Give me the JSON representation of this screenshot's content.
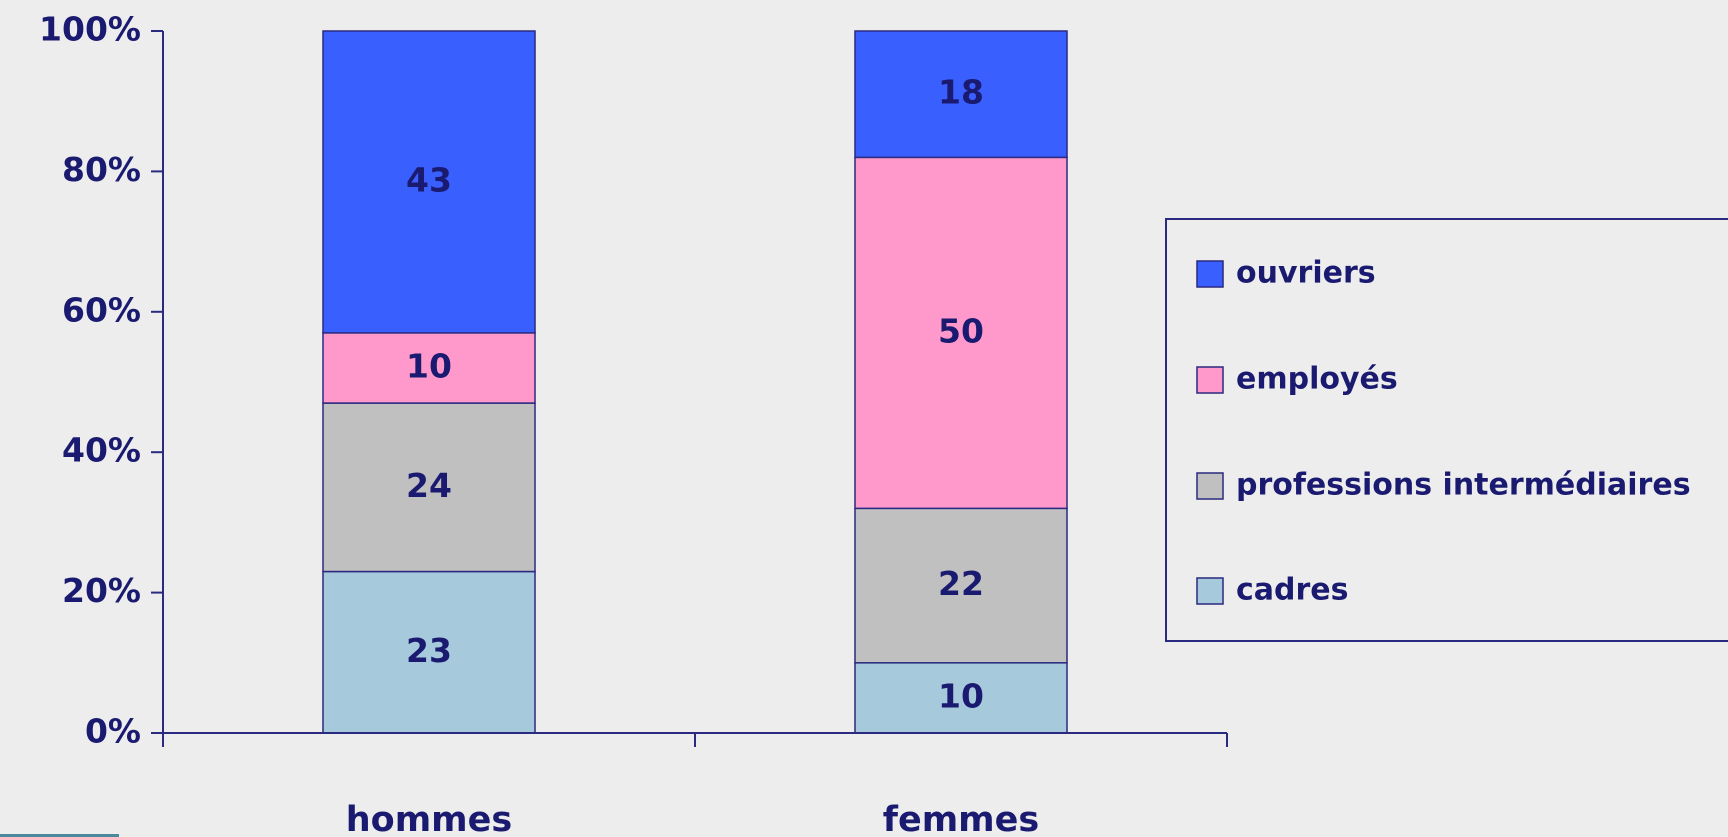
{
  "chart_data": {
    "type": "stacked_bar",
    "categories": [
      "hommes",
      "femmes"
    ],
    "series": [
      {
        "name": "cadres",
        "color": "#a6cadb",
        "values": [
          23,
          10
        ]
      },
      {
        "name": "professions intermédiaires",
        "color": "#c0c0c0",
        "values": [
          24,
          22
        ]
      },
      {
        "name": "employés",
        "color": "#ff99cc",
        "values": [
          10,
          50
        ]
      },
      {
        "name": "ouvriers",
        "color": "#3a5fff",
        "values": [
          43,
          18
        ]
      }
    ],
    "ylim": [
      0,
      100
    ],
    "yticks": [
      {
        "value": 0,
        "label": "0%"
      },
      {
        "value": 20,
        "label": "20%"
      },
      {
        "value": 40,
        "label": "40%"
      },
      {
        "value": 60,
        "label": "60%"
      },
      {
        "value": 80,
        "label": "80%"
      },
      {
        "value": 100,
        "label": "100%"
      }
    ],
    "legend": "right"
  }
}
